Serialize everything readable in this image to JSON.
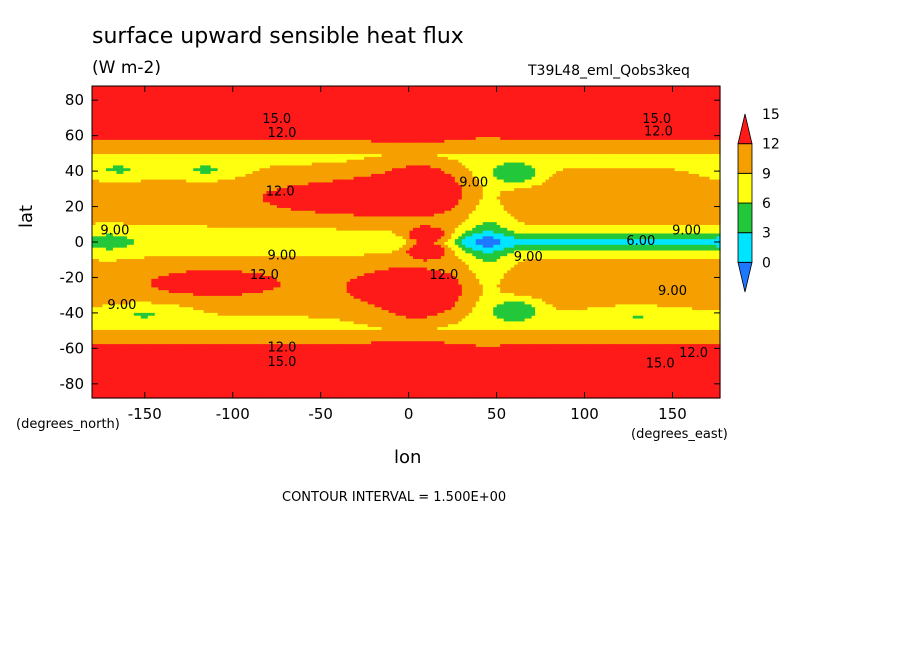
{
  "header": {
    "title": "surface upward sensible heat flux",
    "units": "(W m-2)",
    "run_name": "T39L48_eml_Qobs3keq"
  },
  "footer": {
    "contour_interval": "CONTOUR INTERVAL = 1.500E+00"
  },
  "chart_data": {
    "type": "heatmap",
    "title": "surface upward sensible heat flux",
    "subtitle": "(W m-2)",
    "xlabel": "lon",
    "xunits": "(degrees_east)",
    "ylabel": "lat",
    "yunits": "(degrees_north)",
    "xlim": [
      -180,
      177
    ],
    "ylim": [
      -88,
      88
    ],
    "x_ticks": [
      -150,
      -100,
      -50,
      0,
      50,
      100,
      150
    ],
    "y_ticks": [
      -80,
      -60,
      -40,
      -20,
      0,
      20,
      40,
      60,
      80
    ],
    "x_tick_labels": [
      "-150",
      "-100",
      "-50",
      "0",
      "50",
      "100",
      "150"
    ],
    "y_tick_labels": [
      "-80",
      "-60",
      "-40",
      "-20",
      "0",
      "20",
      "40",
      "60",
      "80"
    ],
    "colorbar": {
      "levels": [
        0,
        3,
        6,
        9,
        12,
        15
      ],
      "labels": [
        "0",
        "3",
        "6",
        "9",
        "12",
        "15"
      ],
      "colors": [
        "#1e78ff",
        "#00e5ff",
        "#22c83a",
        "#ffff10",
        "#f5a000",
        "#ff1a1a"
      ]
    },
    "contour_interval": 1.5,
    "contour_labels": [
      {
        "text": "15.0",
        "lon": -75,
        "lat": 70
      },
      {
        "text": "15.0",
        "lon": 141,
        "lat": 70
      },
      {
        "text": "12.0",
        "lon": -72,
        "lat": 62
      },
      {
        "text": "12.0",
        "lon": 142,
        "lat": 63
      },
      {
        "text": "12.0",
        "lon": -73,
        "lat": 29
      },
      {
        "text": "9.00",
        "lon": 37,
        "lat": 34
      },
      {
        "text": "9.00",
        "lon": -167,
        "lat": 7
      },
      {
        "text": "9.00",
        "lon": -72,
        "lat": -7
      },
      {
        "text": "6.00",
        "lon": 132,
        "lat": 1
      },
      {
        "text": "9.00",
        "lon": 158,
        "lat": 7
      },
      {
        "text": "9.00",
        "lon": 68,
        "lat": -8
      },
      {
        "text": "12.0",
        "lon": -82,
        "lat": -18
      },
      {
        "text": "12.0",
        "lon": 20,
        "lat": -18
      },
      {
        "text": "9.00",
        "lon": -163,
        "lat": -35
      },
      {
        "text": "9.00",
        "lon": 150,
        "lat": -27
      },
      {
        "text": "12.0",
        "lon": -72,
        "lat": -59
      },
      {
        "text": "12.0",
        "lon": 162,
        "lat": -62
      },
      {
        "text": "15.0",
        "lon": -72,
        "lat": -67
      },
      {
        "text": "15.0",
        "lon": 143,
        "lat": -68
      }
    ]
  }
}
